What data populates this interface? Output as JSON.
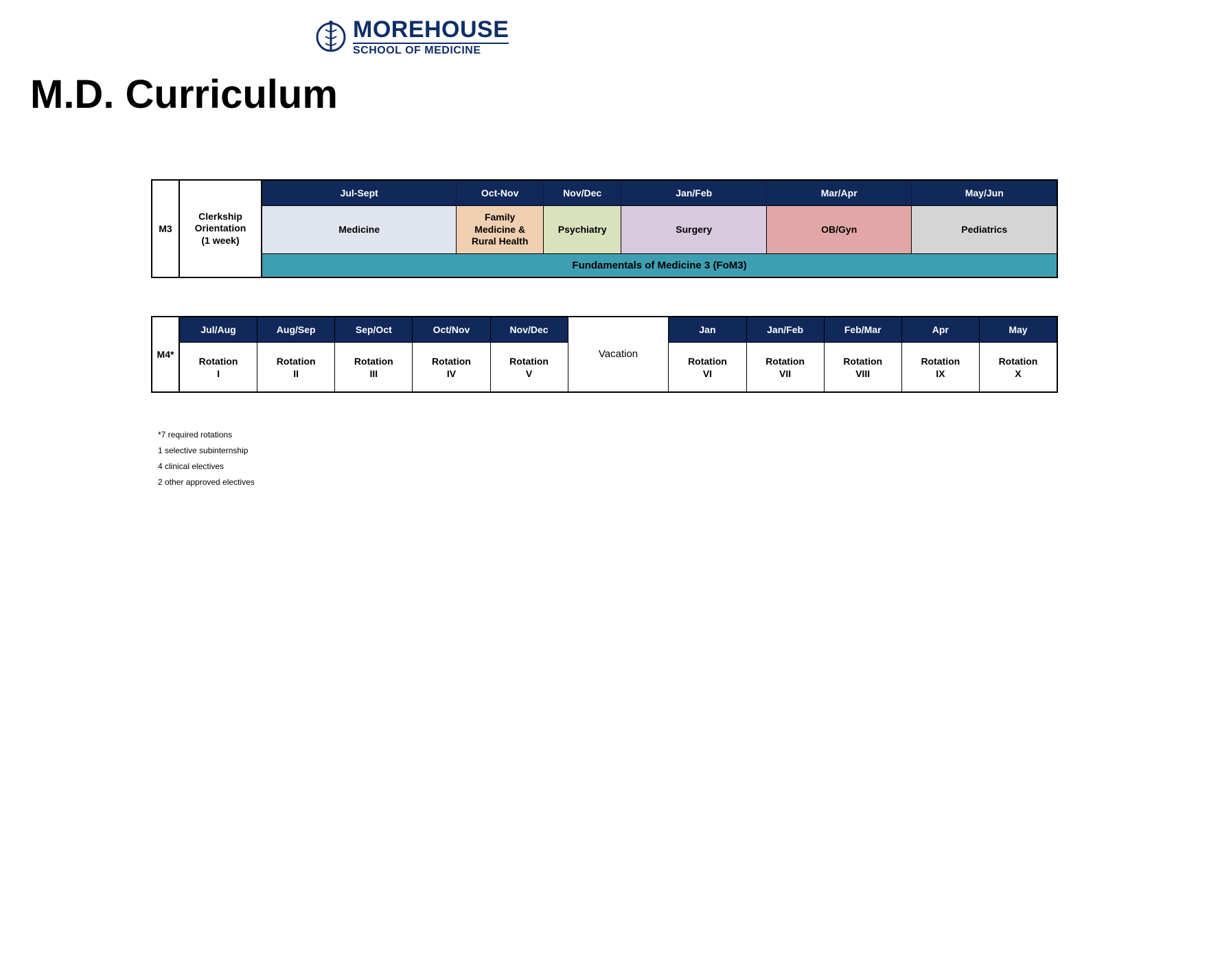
{
  "logo": {
    "top": "MOREHOUSE",
    "bottom": "SCHOOL OF MEDICINE",
    "color": "#0f2e66"
  },
  "title": "M.D. Curriculum",
  "m3": {
    "year_label": "M3",
    "orientation": "Clerkship\nOrientation\n(1 week)",
    "header_bg": "#10285a",
    "header_color": "#ffffff",
    "months": [
      {
        "label": "Jul-Sept",
        "wclass": "w-jul-sept"
      },
      {
        "label": "Oct-Nov",
        "wclass": "w-oct-nov"
      },
      {
        "label": "Nov/Dec",
        "wclass": "w-nov-dec"
      },
      {
        "label": "Jan/Feb",
        "wclass": "w-jan-feb"
      },
      {
        "label": "Mar/Apr",
        "wclass": "w-mar-apr"
      },
      {
        "label": "May/Jun",
        "wclass": "w-may-jun"
      }
    ],
    "clerkships": [
      {
        "label": "Medicine",
        "bg": "#dfe4ee",
        "wclass": "w-med"
      },
      {
        "label": "Family\nMedicine &\nRural Health",
        "bg": "#f0cfb1",
        "wclass": "w-fmrh"
      },
      {
        "label": "Psychiatry",
        "bg": "#d9e2bd",
        "wclass": "w-psych"
      },
      {
        "label": "Surgery",
        "bg": "#d7c9de",
        "wclass": "w-surg"
      },
      {
        "label": "OB/Gyn",
        "bg": "#e2a6a6",
        "wclass": "w-obgyn"
      },
      {
        "label": "Pediatrics",
        "bg": "#d5d5d5",
        "wclass": "w-peds"
      }
    ],
    "fom": "Fundamentals of Medicine 3 (FoM3)",
    "fom_bg": "#3e9fb3"
  },
  "m4": {
    "year_label": "M4*",
    "header_bg": "#10285a",
    "header_color": "#ffffff",
    "vacation": "Vacation",
    "pre": [
      {
        "month": "Jul/Aug",
        "rot": "Rotation\nI"
      },
      {
        "month": "Aug/Sep",
        "rot": "Rotation\nII"
      },
      {
        "month": "Sep/Oct",
        "rot": "Rotation\nIII"
      },
      {
        "month": "Oct/Nov",
        "rot": "Rotation\nIV"
      },
      {
        "month": "Nov/Dec",
        "rot": "Rotation\nV"
      }
    ],
    "post": [
      {
        "month": "Jan",
        "rot": "Rotation\nVI"
      },
      {
        "month": "Jan/Feb",
        "rot": "Rotation\nVII"
      },
      {
        "month": "Feb/Mar",
        "rot": "Rotation\nVIII"
      },
      {
        "month": "Apr",
        "rot": "Rotation\nIX"
      },
      {
        "month": "May",
        "rot": "Rotation\nX"
      }
    ]
  },
  "footnotes": [
    "*7 required rotations",
    "1 selective subinternship",
    "4 clinical electives",
    "2 other approved electives"
  ]
}
